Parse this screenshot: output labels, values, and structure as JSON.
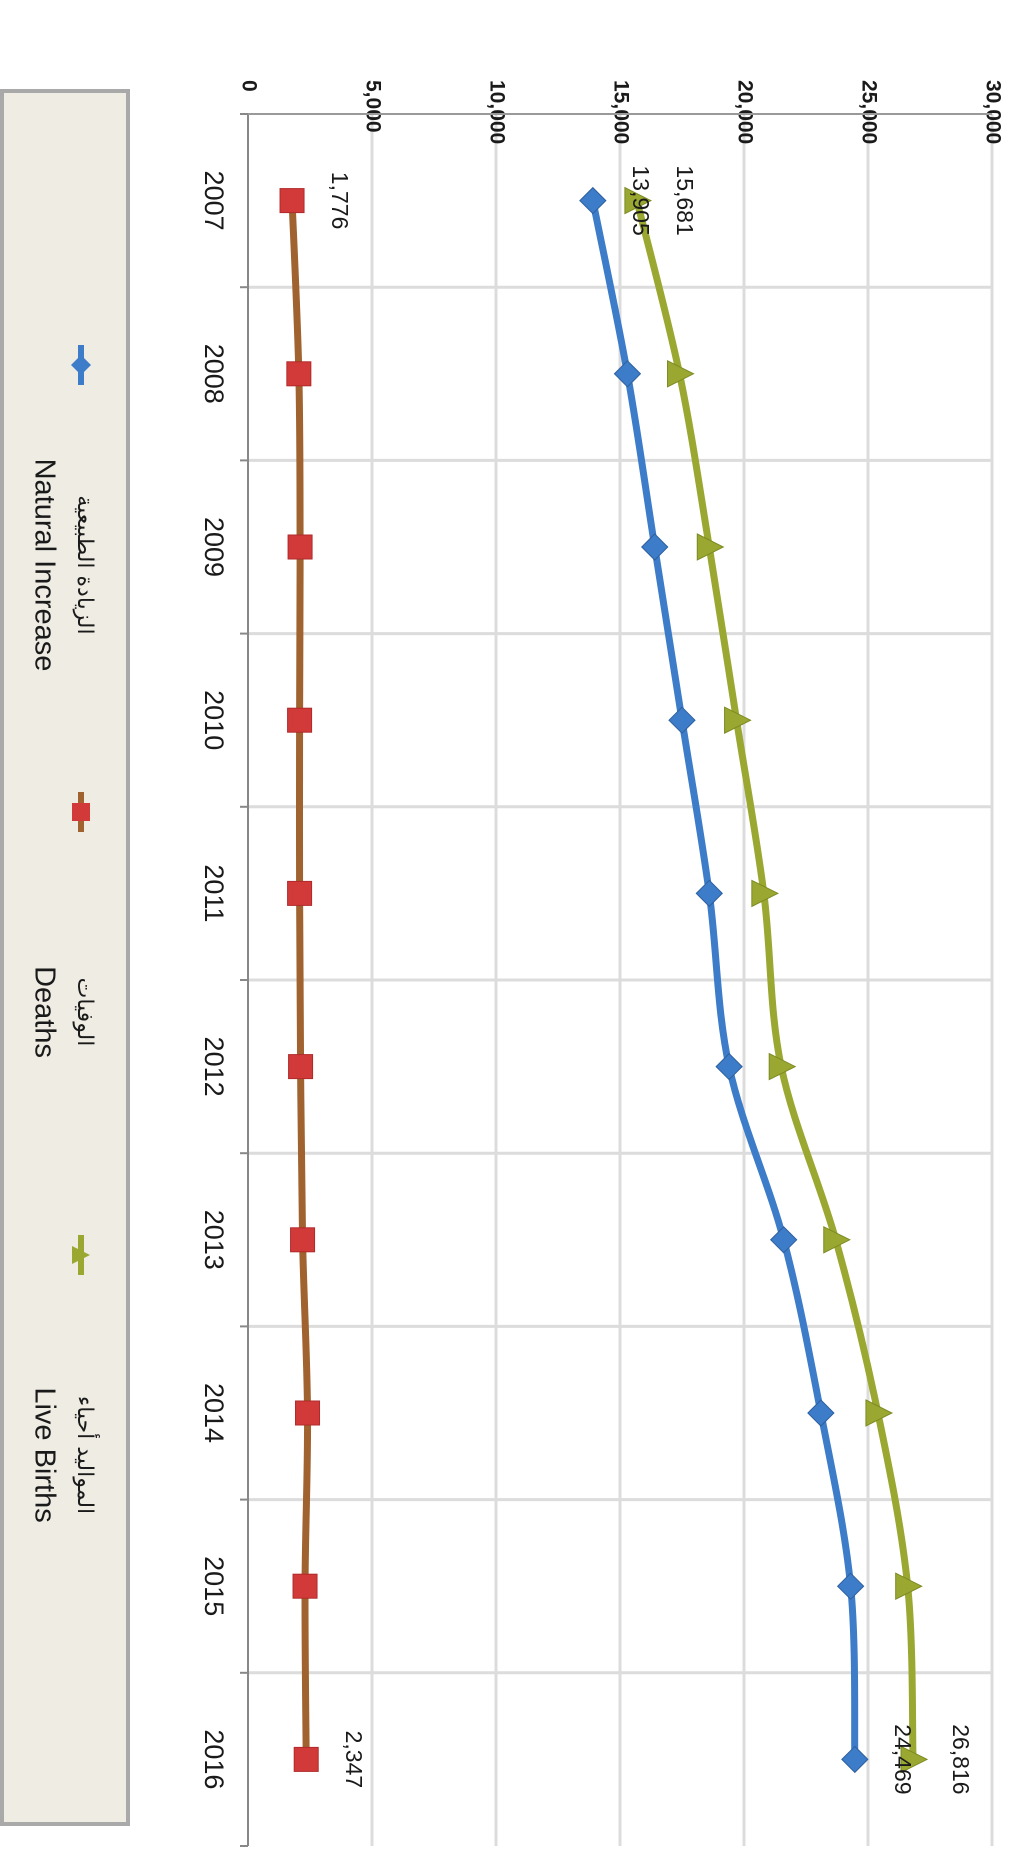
{
  "chart_data": {
    "type": "line",
    "categories": [
      "2007",
      "2008",
      "2009",
      "2010",
      "2011",
      "2012",
      "2013",
      "2014",
      "2015",
      "2016"
    ],
    "y_ticks": [
      "0",
      "5,000",
      "10,000",
      "15,000",
      "20,000",
      "25,000",
      "30,000"
    ],
    "ylim": [
      0,
      30000
    ],
    "grid": true,
    "legend_position": "bottom",
    "orientation": "rotated-90-clockwise",
    "series": [
      {
        "key": "live_births",
        "name_ar": "المواليد أحياء",
        "name_en": "Live Births",
        "color": "#9aa832",
        "marker": "triangle",
        "values": [
          15681,
          17400,
          18600,
          19700,
          20800,
          21500,
          23700,
          25400,
          26600,
          26816
        ],
        "data_labels": {
          "0": "15,681",
          "9": "26,816"
        }
      },
      {
        "key": "deaths",
        "name_ar": "الوفيات",
        "name_en": "Deaths",
        "color": "#a0622e",
        "marker": "square",
        "values": [
          1776,
          2050,
          2100,
          2080,
          2080,
          2120,
          2200,
          2400,
          2300,
          2347
        ],
        "data_labels": {
          "0": "1,776",
          "9": "2,347"
        }
      },
      {
        "key": "natural_increase",
        "name_ar": "الزيادة الطبيعية",
        "name_en": "Natural Increase",
        "color": "#3d7cc9",
        "marker": "diamond",
        "values": [
          13905,
          15300,
          16400,
          17500,
          18600,
          19400,
          21600,
          23100,
          24300,
          24469
        ],
        "data_labels": {
          "0": "13,905",
          "9": "24,469"
        }
      }
    ]
  }
}
